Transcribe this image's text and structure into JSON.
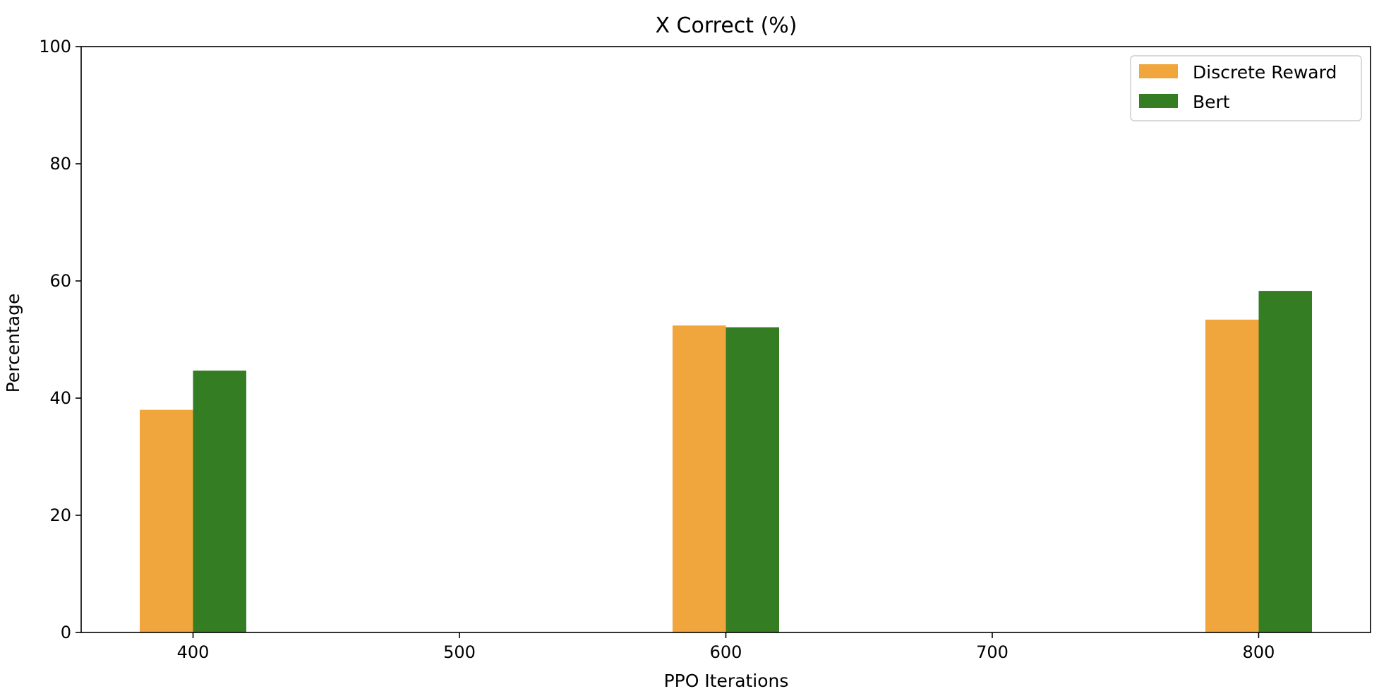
{
  "chart_data": {
    "type": "bar",
    "title": "X Correct (%)",
    "xlabel": "PPO Iterations",
    "ylabel": "Percentage",
    "x": [
      400,
      600,
      800
    ],
    "xlim": [
      358,
      842
    ],
    "xticks": [
      400,
      500,
      600,
      700,
      800
    ],
    "ylim": [
      0,
      100
    ],
    "yticks": [
      0,
      20,
      40,
      60,
      80,
      100
    ],
    "grid": false,
    "legend_position": "top-right",
    "series": [
      {
        "name": "Discrete Reward",
        "color": "#f0a63c",
        "values": [
          38.0,
          52.4,
          53.4
        ]
      },
      {
        "name": "Bert",
        "color": "#357d23",
        "values": [
          44.7,
          52.1,
          58.3
        ]
      }
    ]
  }
}
